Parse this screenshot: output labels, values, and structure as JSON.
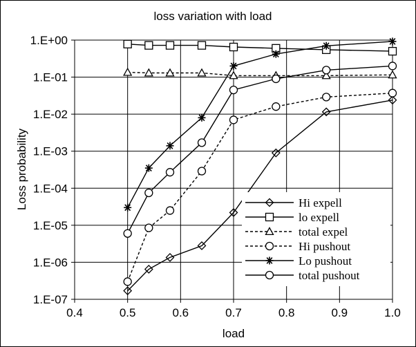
{
  "chart_data": {
    "type": "line",
    "title": "loss variation with load",
    "xlabel": "load",
    "ylabel": "Loss probability",
    "xlim": [
      0.4,
      1.0
    ],
    "ylim": [
      1e-07,
      1
    ],
    "y_scale": "log",
    "x_ticks": [
      "0.4",
      "0.5",
      "0.6",
      "0.7",
      "0.8",
      "0.9",
      "1.0"
    ],
    "y_ticks": [
      "1.E+00",
      "1.E-01",
      "1.E-02",
      "1.E-03",
      "1.E-04",
      "1.E-05",
      "1.E-06",
      "1.E-07"
    ],
    "grid": "vertical-and-horizontal",
    "legend_position": "bottom-right",
    "series": [
      {
        "name": "Hi expell",
        "marker": "diamond",
        "dash": "solid",
        "points": [
          [
            0.5,
            1.7e-07
          ],
          [
            0.54,
            6.5e-07
          ],
          [
            0.58,
            1.35e-06
          ],
          [
            0.64,
            2.8e-06
          ],
          [
            0.7,
            2.2e-05
          ],
          [
            0.78,
            0.0009
          ],
          [
            0.875,
            0.0115
          ],
          [
            1.0,
            0.024
          ]
        ]
      },
      {
        "name": "lo expell",
        "marker": "square",
        "dash": "solid",
        "points": [
          [
            0.5,
            0.78
          ],
          [
            0.54,
            0.72
          ],
          [
            0.58,
            0.72
          ],
          [
            0.64,
            0.72
          ],
          [
            0.7,
            0.65
          ],
          [
            0.78,
            0.6
          ],
          [
            0.875,
            0.55
          ],
          [
            1.0,
            0.5
          ]
        ]
      },
      {
        "name": "total expel",
        "marker": "triangle",
        "dash": "dashed",
        "points": [
          [
            0.5,
            0.135
          ],
          [
            0.54,
            0.13
          ],
          [
            0.58,
            0.13
          ],
          [
            0.64,
            0.13
          ],
          [
            0.7,
            0.11
          ],
          [
            0.78,
            0.11
          ],
          [
            0.875,
            0.11
          ],
          [
            1.0,
            0.115
          ]
        ]
      },
      {
        "name": "Hi pushout",
        "marker": "circle",
        "dash": "dashed",
        "points": [
          [
            0.5,
            3e-07
          ],
          [
            0.54,
            8.5e-06
          ],
          [
            0.58,
            2.5e-05
          ],
          [
            0.64,
            0.00029
          ],
          [
            0.7,
            0.007
          ],
          [
            0.78,
            0.016
          ],
          [
            0.875,
            0.029
          ],
          [
            1.0,
            0.037
          ]
        ]
      },
      {
        "name": "Lo pushout",
        "marker": "star",
        "dash": "solid",
        "points": [
          [
            0.5,
            3e-05
          ],
          [
            0.54,
            0.00035
          ],
          [
            0.58,
            0.0014
          ],
          [
            0.64,
            0.008
          ],
          [
            0.7,
            0.2
          ],
          [
            0.78,
            0.42
          ],
          [
            0.875,
            0.7
          ],
          [
            1.0,
            0.92
          ]
        ]
      },
      {
        "name": "total pushout",
        "marker": "circle",
        "dash": "solid",
        "points": [
          [
            0.5,
            6e-06
          ],
          [
            0.54,
            7.5e-05
          ],
          [
            0.58,
            0.00027
          ],
          [
            0.64,
            0.0017
          ],
          [
            0.7,
            0.045
          ],
          [
            0.78,
            0.09
          ],
          [
            0.875,
            0.155
          ],
          [
            1.0,
            0.2
          ]
        ]
      }
    ]
  }
}
